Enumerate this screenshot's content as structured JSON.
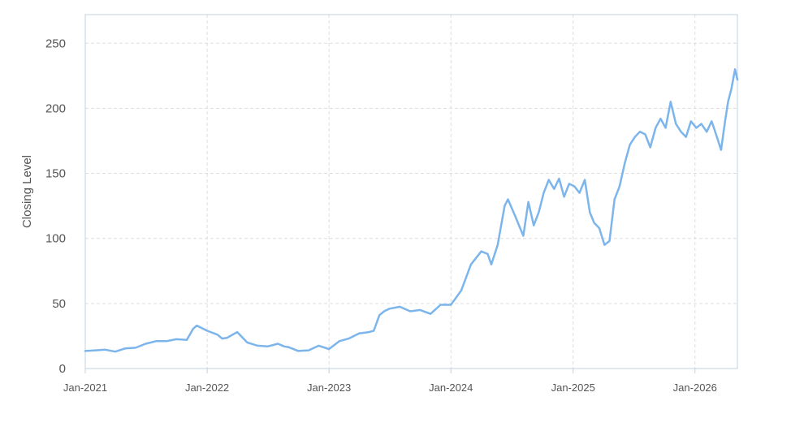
{
  "chart_data": {
    "type": "line",
    "title": "",
    "xlabel": "",
    "ylabel": "Closing Level",
    "ylim": [
      0,
      272
    ],
    "xlim": [
      "2021-01-01",
      "2026-05-08"
    ],
    "yticks": [
      0,
      50,
      100,
      150,
      200,
      250
    ],
    "xticks": [
      {
        "value": "2021-01-01",
        "label": "Jan-2021"
      },
      {
        "value": "2022-01-01",
        "label": "Jan-2022"
      },
      {
        "value": "2023-01-01",
        "label": "Jan-2023"
      },
      {
        "value": "2024-01-01",
        "label": "Jan-2024"
      },
      {
        "value": "2025-01-01",
        "label": "Jan-2025"
      },
      {
        "value": "2026-01-01",
        "label": "Jan-2026"
      }
    ],
    "grid": true,
    "legend": "none",
    "colors": {
      "line": "#7cb5ec",
      "grid": "#dddddd",
      "axis": "#c0d0e0",
      "text": "#555555"
    },
    "series": [
      {
        "x": [
          "2021-01-01",
          "2021-02-01",
          "2021-03-01",
          "2021-04-01",
          "2021-05-01",
          "2021-06-01",
          "2021-07-01",
          "2021-08-01",
          "2021-09-01",
          "2021-10-01",
          "2021-11-01",
          "2021-11-20",
          "2021-12-01",
          "2022-01-01",
          "2022-02-01",
          "2022-02-15",
          "2022-03-01",
          "2022-04-01",
          "2022-05-01",
          "2022-06-01",
          "2022-07-01",
          "2022-08-01",
          "2022-08-20",
          "2022-09-01",
          "2022-10-01",
          "2022-11-01",
          "2022-12-01",
          "2023-01-01",
          "2023-02-01",
          "2023-03-01",
          "2023-04-01",
          "2023-05-01",
          "2023-05-15",
          "2023-06-01",
          "2023-06-15",
          "2023-07-01",
          "2023-08-01",
          "2023-09-01",
          "2023-10-01",
          "2023-11-01",
          "2023-12-01",
          "2024-01-01",
          "2024-02-01",
          "2024-03-01",
          "2024-04-01",
          "2024-04-20",
          "2024-05-01",
          "2024-05-20",
          "2024-06-10",
          "2024-06-20",
          "2024-07-10",
          "2024-08-05",
          "2024-08-20",
          "2024-09-05",
          "2024-09-20",
          "2024-10-05",
          "2024-10-20",
          "2024-11-05",
          "2024-11-20",
          "2024-12-05",
          "2024-12-20",
          "2025-01-05",
          "2025-01-20",
          "2025-02-05",
          "2025-02-20",
          "2025-03-05",
          "2025-03-20",
          "2025-04-05",
          "2025-04-20",
          "2025-05-05",
          "2025-05-20",
          "2025-06-05",
          "2025-06-20",
          "2025-07-05",
          "2025-07-20",
          "2025-08-05",
          "2025-08-20",
          "2025-09-05",
          "2025-09-20",
          "2025-10-05",
          "2025-10-20",
          "2025-11-05",
          "2025-11-20",
          "2025-12-05",
          "2025-12-20",
          "2026-01-05",
          "2026-01-20",
          "2026-02-05",
          "2026-02-20",
          "2026-03-05",
          "2026-03-20",
          "2026-04-01",
          "2026-04-10",
          "2026-04-20",
          "2026-05-01",
          "2026-05-08"
        ],
        "values": [
          13.5,
          14.0,
          14.5,
          13.0,
          15.5,
          16.0,
          19.0,
          21.0,
          21.0,
          22.5,
          22.0,
          30.5,
          33.0,
          29.0,
          26.0,
          23.0,
          23.5,
          28.0,
          20.0,
          17.5,
          17.0,
          19.0,
          17.0,
          16.5,
          13.5,
          14.0,
          17.5,
          15.0,
          21.0,
          23.0,
          27.0,
          28.0,
          29.0,
          41.0,
          44.0,
          46.0,
          47.5,
          44.0,
          45.0,
          42.0,
          49.0,
          49.0,
          60.0,
          80.0,
          90.0,
          88.0,
          80.0,
          95.0,
          125.0,
          130.0,
          118.0,
          102.0,
          128.0,
          110.0,
          120.0,
          135.0,
          145.0,
          138.0,
          146.0,
          132.0,
          142.0,
          140.0,
          135.0,
          145.0,
          120.0,
          112.0,
          108.0,
          95.0,
          98.0,
          130.0,
          140.0,
          158.0,
          172.0,
          178.0,
          182.0,
          180.0,
          170.0,
          185.0,
          192.0,
          185.0,
          205.0,
          188.0,
          182.0,
          178.0,
          190.0,
          185.0,
          188.0,
          182.0,
          190.0,
          180.0,
          168.0,
          190.0,
          205.0,
          215.0,
          230.0,
          222.0
        ]
      }
    ]
  }
}
